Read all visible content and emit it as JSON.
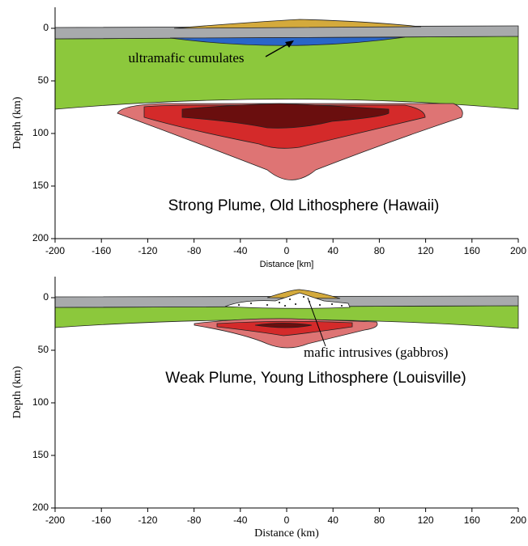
{
  "chart_data": [
    {
      "type": "cross-section",
      "title": "Strong Plume, Old Lithosphere (Hawaii)",
      "annotation": "ultramafic cumulates",
      "x_label": "Distance [km]",
      "y_label": "Depth (km)",
      "xlim": [
        -200,
        200
      ],
      "ylim": [
        -20,
        200
      ],
      "y_inverted": true,
      "xticks": [
        -200,
        -160,
        -120,
        -80,
        -40,
        0,
        40,
        80,
        120,
        160,
        200
      ],
      "yticks": [
        0,
        50,
        100,
        150,
        200
      ]
    },
    {
      "type": "cross-section",
      "title": "Weak Plume, Young Lithosphere (Louisville)",
      "annotation": "mafic intrusives (gabbros)",
      "x_label": "Distance (km)",
      "y_label": "Depth (km)",
      "xlim": [
        -200,
        200
      ],
      "ylim": [
        -20,
        200
      ],
      "y_inverted": true,
      "xticks": [
        -200,
        -160,
        -120,
        -80,
        -40,
        0,
        40,
        80,
        120,
        160,
        200
      ],
      "yticks": [
        0,
        50,
        100,
        150,
        200
      ]
    }
  ]
}
